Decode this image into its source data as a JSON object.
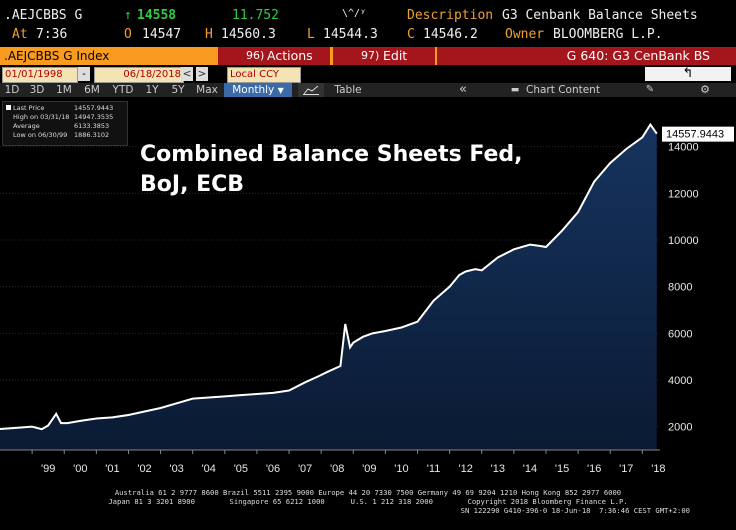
{
  "quote": {
    "ticker": ".AEJCBBS G",
    "arrow": "↑",
    "last": "14558",
    "change": "11.752",
    "spark": "\\^/ʸ",
    "description_label": "Description",
    "description": "G3 Cenbank Balance Sheets",
    "at_label": "At",
    "time": "7:36",
    "open_label": "O",
    "open": "14547",
    "high_label": "H",
    "high": "14560.3",
    "low_label": "L",
    "low": "14544.3",
    "close_label": "C",
    "close": "14546.2",
    "owner_label": "Owner",
    "owner": "BLOOMBERG L.P."
  },
  "toolbar": {
    "index_label": ".AEJCBBS G Index",
    "actions_num": "96)",
    "actions_label": "Actions",
    "edit_num": "97)",
    "edit_label": "Edit",
    "page_label": "G 640: G3 CenBank BS"
  },
  "date_bar": {
    "start_date": "01/01/1998",
    "sep": "-",
    "end_date": "06/18/2018",
    "prev": "<",
    "next": ">",
    "currency": "Local CCY",
    "return_icon": "↰"
  },
  "period_bar": {
    "periods": [
      "1D",
      "3D",
      "1M",
      "6M",
      "YTD",
      "1Y",
      "5Y",
      "Max"
    ],
    "frequency": "Monthly",
    "table_label": "Table",
    "collapse": "«",
    "chart_content": "Chart Content"
  },
  "legend": {
    "last_price_label": "Last Price",
    "last_price": "14557.9443",
    "high_label": "High on 03/31/18",
    "high": "14947.3535",
    "avg_label": "Average",
    "avg": "6133.3853",
    "low_label": "Low on 06/30/99",
    "low": "1886.3102"
  },
  "annotation": {
    "line1": "Combined Balance Sheets Fed,",
    "line2": "BoJ, ECB"
  },
  "colors": {
    "line": "#ffffff",
    "fill_top": "#16345f",
    "fill_bottom": "#0a1a33",
    "orange": "#f89b1e",
    "red": "#a4151c"
  },
  "chart_data": {
    "type": "area",
    "title": "",
    "xlabel": "",
    "ylabel": "",
    "ylim": [
      1000,
      16000
    ],
    "yticks": [
      2000,
      4000,
      6000,
      8000,
      10000,
      12000,
      14000
    ],
    "ytick_labels": [
      "2000",
      "4000",
      "6000",
      "8000",
      "10000",
      "12000",
      "14000"
    ],
    "xlim": [
      1998.0,
      2018.55
    ],
    "xticks": [
      "'99",
      "'00",
      "'01",
      "'02",
      "'03",
      "'04",
      "'05",
      "'06",
      "'07",
      "'08",
      "'09",
      "'10",
      "'11",
      "'12",
      "'13",
      "'14",
      "'15",
      "'16",
      "'17",
      "'18"
    ],
    "last_value_label": "14557.9443",
    "series": [
      {
        "x": [
          1998.0,
          1998.5,
          1999.0,
          1999.3,
          1999.5,
          1999.75,
          1999.9,
          2000.1,
          2000.5,
          2001.0,
          2001.5,
          2002.0,
          2002.5,
          2003.0,
          2003.5,
          2004.0,
          2004.5,
          2005.0,
          2005.5,
          2006.0,
          2006.5,
          2007.0,
          2007.5,
          2007.9,
          2008.2,
          2008.6,
          2008.75,
          2008.9,
          2009.0,
          2009.3,
          2009.6,
          2010.0,
          2010.5,
          2011.0,
          2011.5,
          2012.0,
          2012.3,
          2012.5,
          2012.8,
          2013.0,
          2013.5,
          2014.0,
          2014.5,
          2014.8,
          2015.0,
          2015.5,
          2016.0,
          2016.5,
          2017.0,
          2017.5,
          2018.0,
          2018.25,
          2018.45
        ],
        "y": [
          1900,
          1950,
          2000,
          1890,
          2050,
          2550,
          2150,
          2150,
          2250,
          2350,
          2400,
          2500,
          2650,
          2800,
          3000,
          3200,
          3250,
          3300,
          3350,
          3400,
          3450,
          3550,
          3900,
          4150,
          4350,
          4600,
          6400,
          5400,
          5600,
          5850,
          6000,
          6100,
          6250,
          6500,
          7400,
          8000,
          8500,
          8650,
          8750,
          8700,
          9250,
          9600,
          9800,
          9750,
          9700,
          10400,
          11200,
          12500,
          13300,
          13900,
          14400,
          14947,
          14558
        ]
      }
    ]
  },
  "footer": {
    "line1": "Australia 61 2 9777 8600 Brazil 5511 2395 9000 Europe 44 20 7330 7500 Germany 49 69 9204 1210 Hong Kong 852 2977 6000",
    "line2": "Japan 81 3 3201 8900        Singapore 65 6212 1000      U.S. 1 212 318 2000        Copyright 2018 Bloomberg Finance L.P.",
    "line3": "SN 122290 G410-396-0 18-Jun-18  7:36:46 CEST GMT+2:00"
  }
}
